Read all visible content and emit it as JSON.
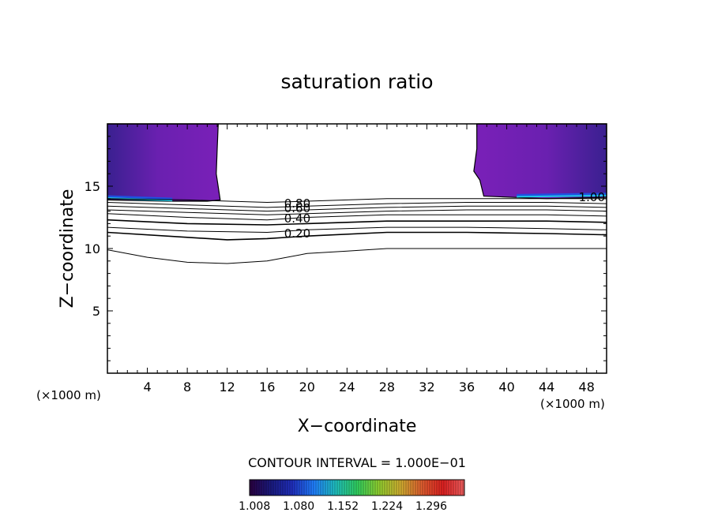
{
  "chart_data": {
    "type": "contour",
    "title": "saturation ratio",
    "xlabel": "X−coordinate",
    "ylabel": "Z−coordinate",
    "x_unit_left": "(×1000 m)",
    "x_unit_right": "(×1000 m)",
    "xlim": [
      0,
      50
    ],
    "ylim": [
      0,
      20
    ],
    "x_ticks": [
      4,
      8,
      12,
      16,
      20,
      24,
      28,
      32,
      36,
      40,
      44,
      48
    ],
    "x_tick_labels": [
      "4",
      "8",
      "12",
      "16",
      "20",
      "24",
      "28",
      "32",
      "36",
      "40",
      "44",
      "48"
    ],
    "y_ticks": [
      5,
      10,
      15
    ],
    "y_tick_labels": [
      "5",
      "10",
      "15"
    ],
    "contour_interval_text": "CONTOUR INTERVAL = 1.000E−01",
    "contour_labels": [
      {
        "text": "0.80",
        "x": 17.7,
        "z": 13.3
      },
      {
        "text": "0.60",
        "x": 17.7,
        "z": 12.9
      },
      {
        "text": "0.40",
        "x": 17.7,
        "z": 12.1
      },
      {
        "text": "0.20",
        "x": 17.7,
        "z": 10.9
      },
      {
        "text": "1.00",
        "x": 47.2,
        "z": 13.8
      }
    ],
    "contour_lines": [
      {
        "value": 0.9,
        "points": [
          [
            0,
            14.0
          ],
          [
            8,
            13.9
          ],
          [
            16,
            13.7
          ],
          [
            20,
            13.8
          ],
          [
            28,
            14.0
          ],
          [
            36,
            14.0
          ],
          [
            44,
            14.0
          ],
          [
            50,
            14.0
          ]
        ]
      },
      {
        "value": 0.8,
        "points": [
          [
            0,
            13.7
          ],
          [
            8,
            13.5
          ],
          [
            16,
            13.3
          ],
          [
            20,
            13.4
          ],
          [
            28,
            13.6
          ],
          [
            36,
            13.7
          ],
          [
            44,
            13.7
          ],
          [
            50,
            13.6
          ]
        ]
      },
      {
        "value": 0.7,
        "points": [
          [
            0,
            13.4
          ],
          [
            8,
            13.2
          ],
          [
            16,
            13.0
          ],
          [
            20,
            13.1
          ],
          [
            28,
            13.3
          ],
          [
            36,
            13.4
          ],
          [
            44,
            13.4
          ],
          [
            50,
            13.3
          ]
        ]
      },
      {
        "value": 0.6,
        "points": [
          [
            0,
            13.1
          ],
          [
            8,
            12.9
          ],
          [
            16,
            12.7
          ],
          [
            20,
            12.8
          ],
          [
            28,
            13.0
          ],
          [
            36,
            13.1
          ],
          [
            44,
            13.1
          ],
          [
            50,
            13.0
          ]
        ]
      },
      {
        "value": 0.5,
        "points": [
          [
            0,
            12.8
          ],
          [
            8,
            12.5
          ],
          [
            16,
            12.3
          ],
          [
            20,
            12.5
          ],
          [
            28,
            12.7
          ],
          [
            36,
            12.7
          ],
          [
            44,
            12.7
          ],
          [
            50,
            12.6
          ]
        ]
      },
      {
        "value": 0.4,
        "points": [
          [
            0,
            12.3
          ],
          [
            8,
            12.0
          ],
          [
            16,
            11.9
          ],
          [
            20,
            12.0
          ],
          [
            28,
            12.2
          ],
          [
            36,
            12.2
          ],
          [
            44,
            12.2
          ],
          [
            50,
            12.1
          ]
        ]
      },
      {
        "value": 0.3,
        "points": [
          [
            0,
            11.7
          ],
          [
            8,
            11.4
          ],
          [
            16,
            11.3
          ],
          [
            20,
            11.5
          ],
          [
            28,
            11.7
          ],
          [
            36,
            11.7
          ],
          [
            44,
            11.6
          ],
          [
            50,
            11.5
          ]
        ]
      },
      {
        "value": 0.2,
        "points": [
          [
            0,
            11.3
          ],
          [
            8,
            10.9
          ],
          [
            12,
            10.7
          ],
          [
            16,
            10.8
          ],
          [
            20,
            11.0
          ],
          [
            28,
            11.3
          ],
          [
            36,
            11.3
          ],
          [
            44,
            11.2
          ],
          [
            50,
            11.1
          ]
        ]
      },
      {
        "value": 0.1,
        "points": [
          [
            0,
            9.9
          ],
          [
            4,
            9.3
          ],
          [
            8,
            8.9
          ],
          [
            12,
            8.8
          ],
          [
            16,
            9.0
          ],
          [
            20,
            9.6
          ],
          [
            24,
            9.8
          ],
          [
            28,
            10.0
          ],
          [
            36,
            10.0
          ],
          [
            44,
            10.0
          ],
          [
            50,
            10.0
          ]
        ]
      }
    ],
    "supersaturated_regions": [
      {
        "name": "left",
        "boundary": [
          [
            0,
            20
          ],
          [
            11.1,
            20
          ],
          [
            11.0,
            18
          ],
          [
            10.9,
            16
          ],
          [
            11.3,
            13.9
          ],
          [
            10.0,
            13.8
          ],
          [
            6,
            13.8
          ],
          [
            0,
            13.9
          ]
        ]
      },
      {
        "name": "right",
        "boundary": [
          [
            37.0,
            20
          ],
          [
            50,
            20
          ],
          [
            50,
            14.1
          ],
          [
            44,
            14.0
          ],
          [
            37.7,
            14.2
          ],
          [
            37.3,
            15.5
          ],
          [
            36.7,
            16.2
          ],
          [
            37.0,
            18
          ]
        ]
      }
    ],
    "colorbar": {
      "ticks": [
        "1.008",
        "1.080",
        "1.152",
        "1.224",
        "1.296"
      ],
      "min": 1.0,
      "max": 1.35,
      "colors": [
        "#2a0040",
        "#1a1a80",
        "#2030c0",
        "#2080ff",
        "#20c0c0",
        "#30d060",
        "#90d030",
        "#d0b030",
        "#e06030",
        "#e02020",
        "#f06060"
      ]
    },
    "fill_colors": {
      "region_main": "#7a20b8",
      "region_dark": "#3a2090",
      "region_edge": "#2050e0",
      "region_cyan": "#20c8e8"
    }
  }
}
